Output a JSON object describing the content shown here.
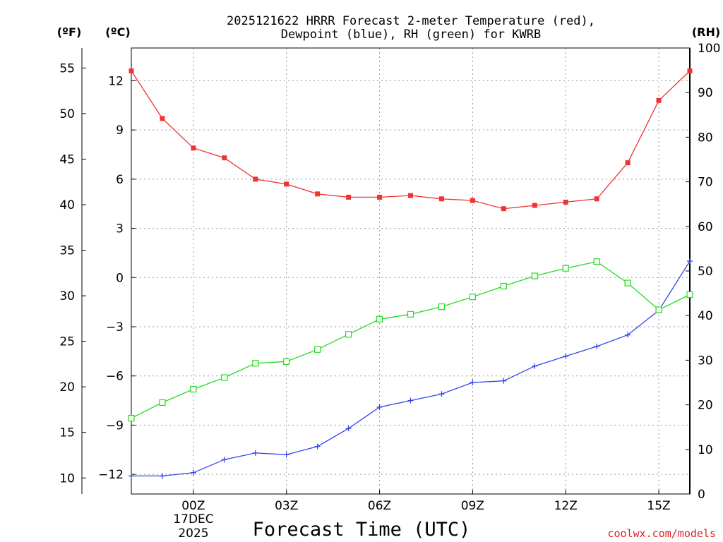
{
  "chart_data": {
    "type": "line",
    "title": "2025121622 HRRR Forecast 2-meter Temperature (red),",
    "subtitle": "Dewpoint (blue), RH (green) for KWRB",
    "xlabel": "Forecast Time (UTC)",
    "credit": "coolwx.com/models",
    "units": {
      "fahrenheit": "(ºF)",
      "celsius": "(ºC)",
      "rh": "(RH)"
    },
    "x_hours": [
      -2,
      -1,
      0,
      1,
      2,
      3,
      4,
      5,
      6,
      7,
      8,
      9,
      10,
      11,
      12,
      13,
      14,
      15,
      16
    ],
    "xlim": [
      -2,
      16
    ],
    "x_ticks": [
      {
        "hour": 0,
        "label": "00Z"
      },
      {
        "hour": 3,
        "label": "03Z"
      },
      {
        "hour": 6,
        "label": "06Z"
      },
      {
        "hour": 9,
        "label": "09Z"
      },
      {
        "hour": 12,
        "label": "12Z"
      },
      {
        "hour": 15,
        "label": "15Z"
      }
    ],
    "date_label": {
      "line1": "17DEC",
      "line2": "2025"
    },
    "celsius_axis": {
      "ylim": [
        -13.2,
        14
      ],
      "ticks": [
        -12,
        -9,
        -6,
        -3,
        0,
        3,
        6,
        9,
        12
      ],
      "tick_labels": [
        "−12",
        "−9",
        "−6",
        "−3",
        "0",
        "3",
        "6",
        "9",
        "12"
      ]
    },
    "fahrenheit_axis": {
      "ticks": [
        10,
        15,
        20,
        25,
        30,
        35,
        40,
        45,
        50,
        55
      ],
      "tick_labels": [
        "10",
        "15",
        "20",
        "25",
        "30",
        "35",
        "40",
        "45",
        "50",
        "55"
      ]
    },
    "rh_axis": {
      "ylim": [
        0,
        100
      ],
      "ticks": [
        0,
        10,
        20,
        30,
        40,
        50,
        60,
        70,
        80,
        90,
        100
      ],
      "tick_labels": [
        "0",
        "10",
        "20",
        "30",
        "40",
        "50",
        "60",
        "70",
        "80",
        "90",
        "100"
      ]
    },
    "series": [
      {
        "name": "Temperature",
        "units": "C",
        "color": "#ee3333",
        "marker": "filled-square",
        "values": [
          12.6,
          9.7,
          7.9,
          7.3,
          6.0,
          5.7,
          5.1,
          4.9,
          4.9,
          5.0,
          4.8,
          4.7,
          4.2,
          4.4,
          4.6,
          4.8,
          7.0,
          10.8,
          12.6
        ]
      },
      {
        "name": "Dewpoint",
        "units": "C",
        "color": "#3344ee",
        "marker": "plus",
        "values": [
          -12.1,
          -12.1,
          -11.9,
          -11.1,
          -10.7,
          -10.8,
          -10.3,
          -9.2,
          -7.9,
          -7.5,
          -7.1,
          -6.4,
          -6.3,
          -5.4,
          -4.8,
          -4.2,
          -3.5,
          -2.0,
          1.0
        ]
      },
      {
        "name": "RH",
        "units": "%",
        "color": "#22dd22",
        "marker": "open-square",
        "values": [
          17,
          20.5,
          23.5,
          26.1,
          29.3,
          29.7,
          32.4,
          35.8,
          39.2,
          40.3,
          42.0,
          44.2,
          46.6,
          48.9,
          50.6,
          52.1,
          47.3,
          41.3,
          44.7
        ]
      }
    ]
  }
}
